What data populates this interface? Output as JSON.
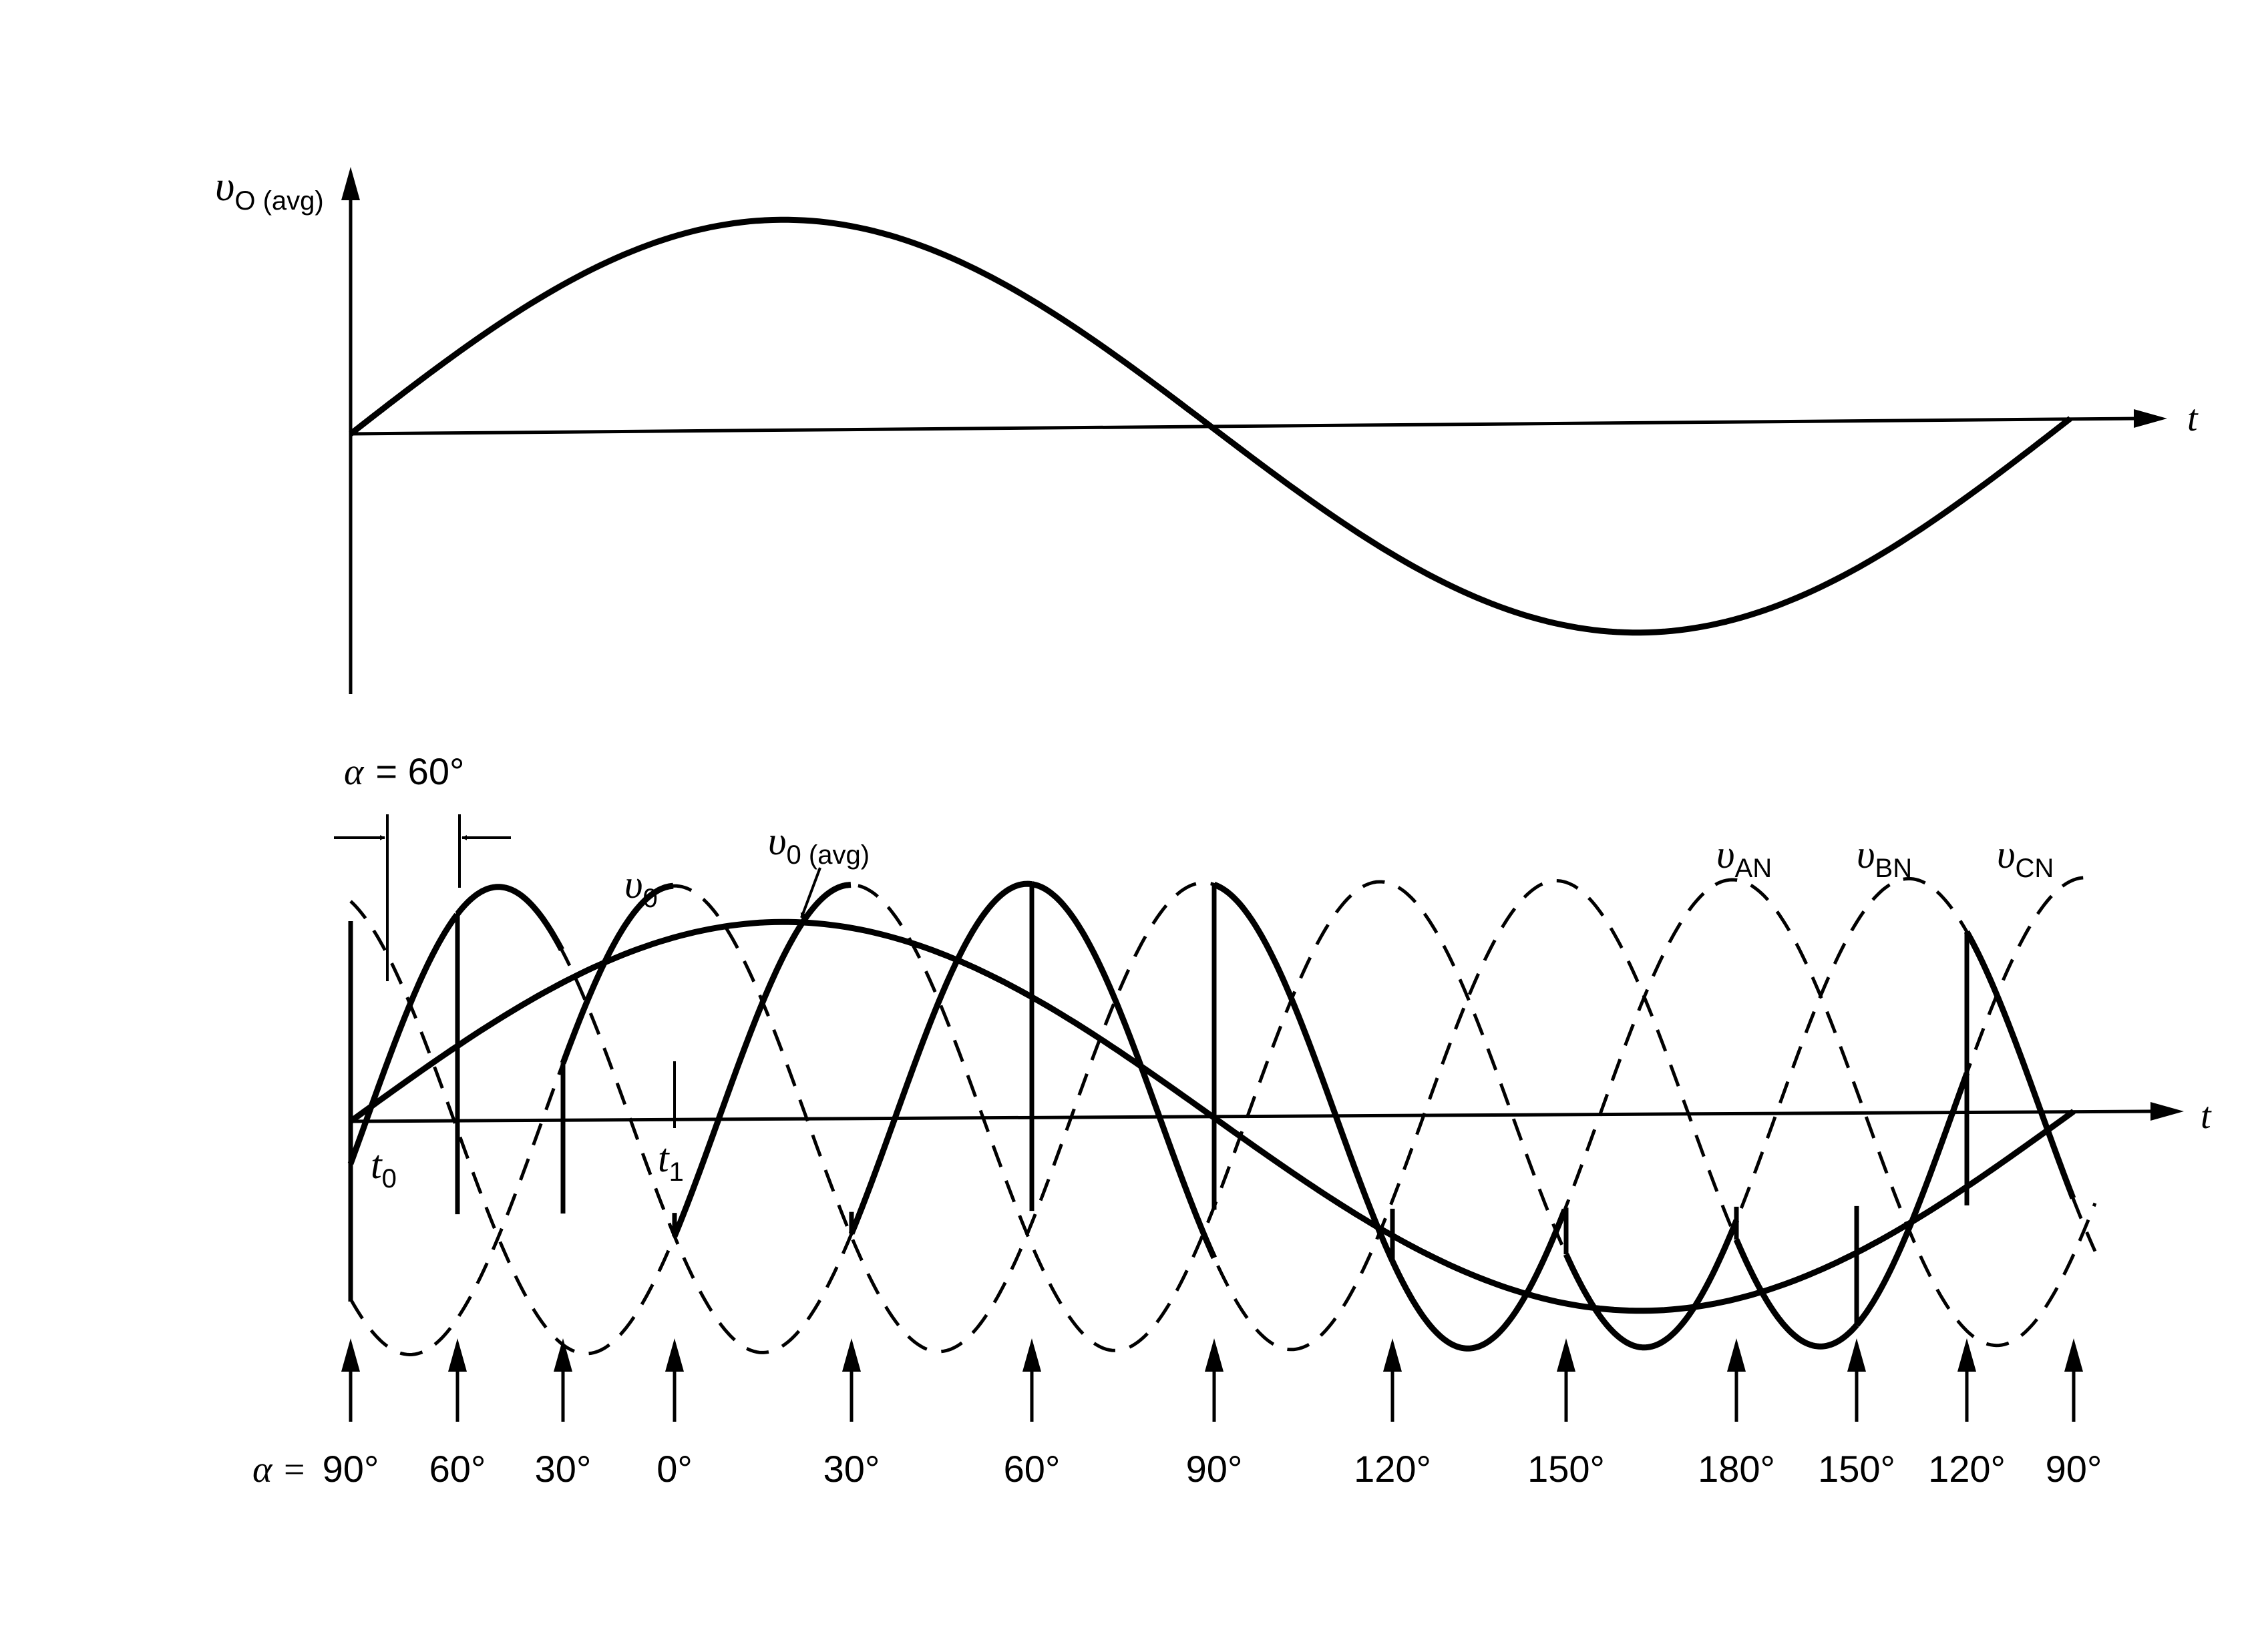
{
  "top": {
    "y_label_main": "υ",
    "y_label_sub": "O (avg)",
    "x_label": "t"
  },
  "bottom": {
    "x_label": "t",
    "alpha_gap": {
      "greek": "α",
      "value": "= 60°"
    },
    "v0": {
      "main": "υ",
      "sub": "0"
    },
    "v0avg": {
      "main": "υ",
      "sub": "0 (avg)"
    },
    "phases": [
      {
        "main": "υ",
        "sub": "AN"
      },
      {
        "main": "υ",
        "sub": "BN"
      },
      {
        "main": "υ",
        "sub": "CN"
      }
    ],
    "t0": {
      "main": "t",
      "sub": "0"
    },
    "t1": {
      "main": "t",
      "sub": "1"
    },
    "alpha_prefix": "α =",
    "alpha_ticks": [
      "90°",
      "60°",
      "30°",
      "0°",
      "30°",
      "60°",
      "90°",
      "120°",
      "150°",
      "180°",
      "150°",
      "120°",
      "90°"
    ]
  },
  "colors": {
    "ink": "#000000",
    "paper": "#ffffff"
  }
}
